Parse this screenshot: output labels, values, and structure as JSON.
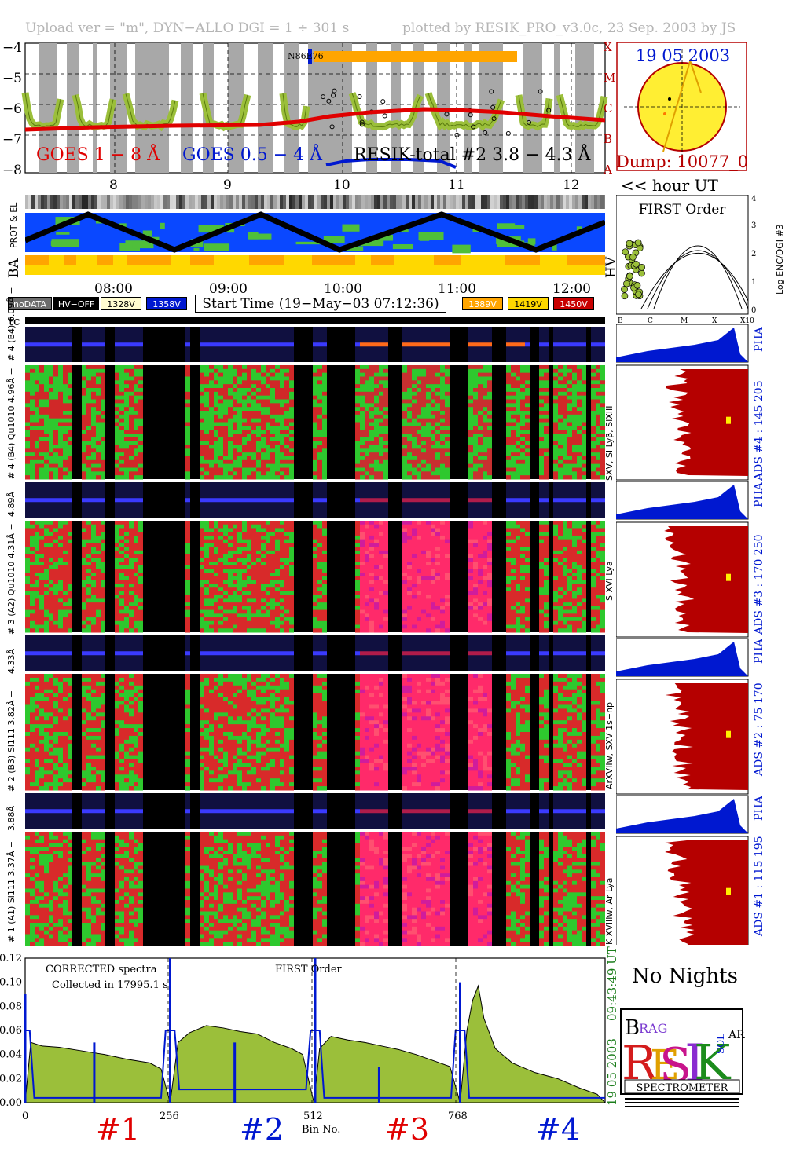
{
  "header": {
    "left": "Upload ver = \"m\", DYN−ALLO DGI =   1 ÷ 301 s",
    "right": "plotted by RESIK_PRO_v3.0c, 23 Sep. 2003 by JS"
  },
  "goes": {
    "legend_red": "GOES 1 − 8 Å",
    "legend_blue": "GOES 0.5 − 4 Å",
    "legend_black": "RESIK-total #2  3.8 − 4.3 Å",
    "y_ticks": [
      "−4",
      "−5",
      "−6",
      "−7",
      "−8"
    ],
    "class_letters": [
      "X",
      "M",
      "C",
      "B",
      "A"
    ],
    "hours": [
      "8",
      "9",
      "10",
      "11",
      "12"
    ],
    "hour_ut": "<< hour UT",
    "marker_text": "N86E76"
  },
  "sun": {
    "date": "19 05 2003",
    "dump": "Dump: 10077_0"
  },
  "first_order": {
    "title": "FIRST Order",
    "x_ticks": [
      "B",
      "C",
      "M",
      "X",
      "X10"
    ],
    "y_ticks": [
      "0",
      "1",
      "2",
      "3",
      "4"
    ],
    "ylabel": "Log ENC/DGI #3"
  },
  "strips": {
    "prot_el": "PROT & EL",
    "ba": "BA",
    "hv": "HV",
    "time_ticks": [
      "08:00",
      "09:00",
      "10:00",
      "11:00",
      "12:00"
    ]
  },
  "legend_boxes": {
    "nodata": "noDATA",
    "hvoff": "HV−OFF",
    "v1328": "1328V",
    "v1358": "1358V",
    "start_time": "Start Time (19−May−03 07:12:36)",
    "v1389": "1389V",
    "v1419": "1419V",
    "v1450": "1450V"
  },
  "tc": "tc",
  "channels": [
    {
      "pha_left": "# 4 (B4)  6.09Å −",
      "spec_left": "# 4 (B4) Qu1010 4.96Å −",
      "side": "SXV, Si Lyβ, SiXIII",
      "ads": "ADS #4 :   145 205",
      "pha": "PHA"
    },
    {
      "pha_left": "4.89Å",
      "spec_left": "# 3 (A2) Qu1010 4.31Å −",
      "side": "S XVI Lya",
      "ads": "ADS #3 :  170 250",
      "pha": "PHA"
    },
    {
      "pha_left": "4.33Å",
      "spec_left": "# 2 (B3) Si111 3.82Å −",
      "side": "ArXVIIw, SXV 1s−np",
      "ads": "ADS #2 :  75 170",
      "pha": "PHA"
    },
    {
      "pha_left": "3.88Å",
      "spec_left": "# 1 (A1) Si111 3.37Å −",
      "side": "K XVIIIw, Ar Lya",
      "ads": "ADS #1 :  115 195",
      "pha": "PHA"
    }
  ],
  "bottom": {
    "corrected": "CORRECTED spectra",
    "collected": "Collected in 17995.1 s",
    "first_order": "FIRST Order",
    "y_ticks": [
      "0.12",
      "0.10",
      "0.08",
      "0.06",
      "0.04",
      "0.02",
      "0.00"
    ],
    "x_ticks": [
      "0",
      "256",
      "512",
      "768"
    ],
    "xlabel": "Bin No.",
    "time": "09:43:49 UT",
    "date": "19 05 2003",
    "labels": [
      "#1",
      "#2",
      "#3",
      "#4"
    ]
  },
  "no_nights": "No Nights",
  "logo": {
    "text": "SPECTROMETER",
    "letters": [
      "B",
      "RAG",
      "R",
      "E",
      "S",
      "I",
      "K",
      "SOL",
      "AR"
    ]
  },
  "colors": {
    "green_fill": "#9bbf3a",
    "red": "#e00000",
    "blue": "#0018d0",
    "dark_red": "#b50000",
    "orange": "#ffa500",
    "yellow": "#ffd800"
  },
  "chart_data": {
    "type": "area",
    "xlabel": "Bin No.",
    "ylabel": "",
    "xlim": [
      0,
      1024
    ],
    "ylim": [
      0,
      0.12
    ],
    "series": [
      {
        "name": "CORRECTED spectra",
        "x": [
          0,
          10,
          30,
          60,
          100,
          140,
          180,
          220,
          240,
          256,
          270,
          290,
          320,
          350,
          380,
          410,
          440,
          470,
          490,
          510,
          520,
          540,
          570,
          600,
          630,
          660,
          690,
          720,
          750,
          768,
          780,
          790,
          800,
          810,
          830,
          860,
          900,
          940,
          980,
          1010,
          1024
        ],
        "y": [
          0.0,
          0.05,
          0.047,
          0.046,
          0.043,
          0.04,
          0.036,
          0.033,
          0.028,
          0.0,
          0.05,
          0.058,
          0.064,
          0.062,
          0.059,
          0.057,
          0.05,
          0.045,
          0.04,
          0.0,
          0.045,
          0.055,
          0.052,
          0.05,
          0.047,
          0.044,
          0.04,
          0.035,
          0.03,
          0.0,
          0.06,
          0.085,
          0.097,
          0.07,
          0.045,
          0.033,
          0.025,
          0.02,
          0.012,
          0.007,
          0.0
        ]
      }
    ]
  }
}
